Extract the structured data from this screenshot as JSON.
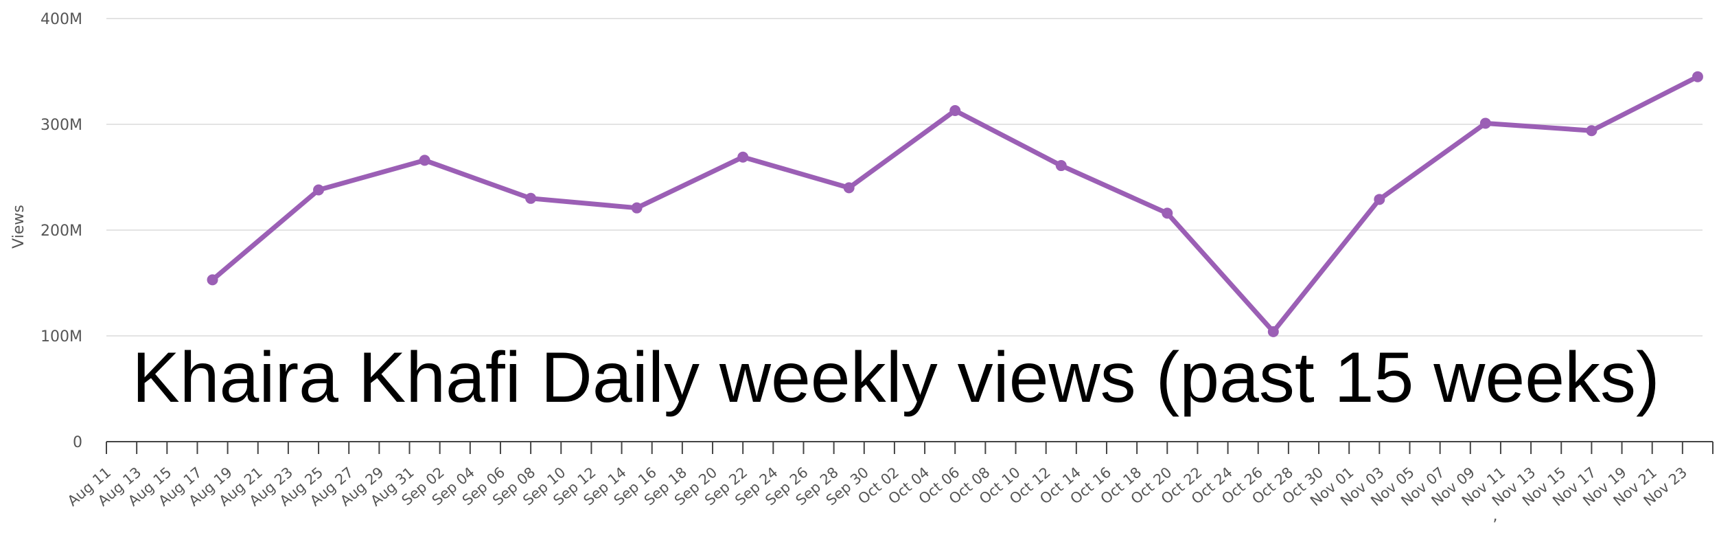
{
  "chart_data": {
    "type": "line",
    "title": "Khaira Khafi Daily weekly views (past 15 weeks)",
    "xlabel": "",
    "ylabel": "Views",
    "ylim": [
      0,
      400000000
    ],
    "yticks": [
      {
        "value": 0,
        "label": "0"
      },
      {
        "value": 100000000,
        "label": "100M"
      },
      {
        "value": 200000000,
        "label": "200M"
      },
      {
        "value": 300000000,
        "label": "300M"
      },
      {
        "value": 400000000,
        "label": "400M"
      }
    ],
    "grid": true,
    "legend": "none",
    "x_start": "2024-08-11",
    "x_end": "2024-11-25",
    "x_tick_labels": [
      "Aug 11",
      "Aug 13",
      "Aug 15",
      "Aug 17",
      "Aug 19",
      "Aug 21",
      "Aug 23",
      "Aug 25",
      "Aug 27",
      "Aug 29",
      "Aug 31",
      "Sep 02",
      "Sep 04",
      "Sep 06",
      "Sep 08",
      "Sep 10",
      "Sep 12",
      "Sep 14",
      "Sep 16",
      "Sep 18",
      "Sep 20",
      "Sep 22",
      "Sep 24",
      "Sep 26",
      "Sep 28",
      "Sep 30",
      "Oct 02",
      "Oct 04",
      "Oct 06",
      "Oct 08",
      "Oct 10",
      "Oct 12",
      "Oct 14",
      "Oct 16",
      "Oct 18",
      "Oct 20",
      "Oct 22",
      "Oct 24",
      "Oct 26",
      "Oct 28",
      "Oct 30",
      "Nov 01",
      "Nov 03",
      "Nov 05",
      "Nov 07",
      "Nov 09",
      "Nov 11",
      "Nov 13",
      "Nov 15",
      "Nov 17",
      "Nov 19",
      "Nov 21",
      "Nov 23"
    ],
    "stray_mark": ",",
    "series": [
      {
        "color": "#9b5fb5",
        "points": [
          {
            "x": "2024-08-18",
            "y": 153000000
          },
          {
            "x": "2024-08-25",
            "y": 238000000
          },
          {
            "x": "2024-09-01",
            "y": 266000000
          },
          {
            "x": "2024-09-08",
            "y": 230000000
          },
          {
            "x": "2024-09-15",
            "y": 221000000
          },
          {
            "x": "2024-09-22",
            "y": 269000000
          },
          {
            "x": "2024-09-29",
            "y": 240000000
          },
          {
            "x": "2024-10-06",
            "y": 313000000
          },
          {
            "x": "2024-10-13",
            "y": 261000000
          },
          {
            "x": "2024-10-20",
            "y": 216000000
          },
          {
            "x": "2024-10-27",
            "y": 104000000
          },
          {
            "x": "2024-11-03",
            "y": 229000000
          },
          {
            "x": "2024-11-10",
            "y": 301000000
          },
          {
            "x": "2024-11-17",
            "y": 294000000
          },
          {
            "x": "2024-11-24",
            "y": 345000000
          }
        ]
      }
    ]
  }
}
